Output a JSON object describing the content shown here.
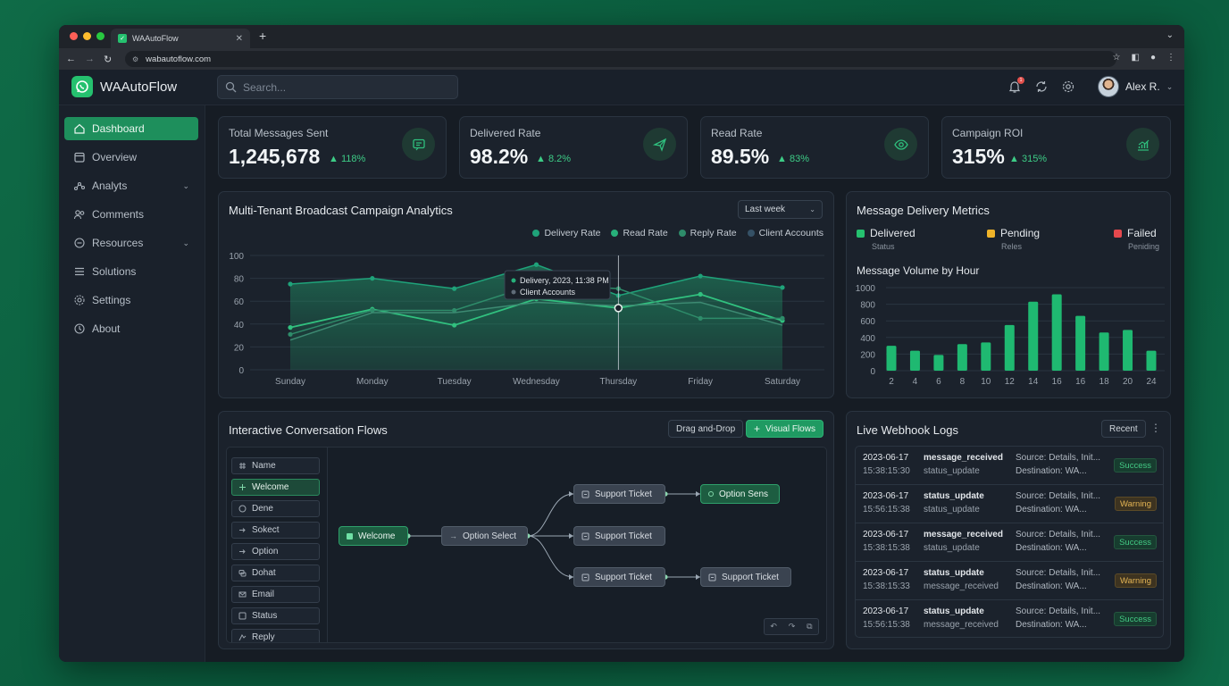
{
  "browser": {
    "tab_title": "WAAutoFlow",
    "url": "wabautoflow.com"
  },
  "app": {
    "name": "WAAutoFlow",
    "search_placeholder": "Search...",
    "notification_count": "1",
    "user_name": "Alex R."
  },
  "sidebar": {
    "items": [
      {
        "label": "Dashboard",
        "icon": "home-icon",
        "active": true,
        "expandable": false
      },
      {
        "label": "Overview",
        "icon": "calendar-icon",
        "active": false,
        "expandable": false
      },
      {
        "label": "Analyts",
        "icon": "analytics-icon",
        "active": false,
        "expandable": true
      },
      {
        "label": "Comments",
        "icon": "users-icon",
        "active": false,
        "expandable": false
      },
      {
        "label": "Resources",
        "icon": "chat-icon",
        "active": false,
        "expandable": true
      },
      {
        "label": "Solutions",
        "icon": "list-icon",
        "active": false,
        "expandable": false
      },
      {
        "label": "Settings",
        "icon": "gear-icon",
        "active": false,
        "expandable": false
      },
      {
        "label": "About",
        "icon": "clock-icon",
        "active": false,
        "expandable": false
      }
    ]
  },
  "stats": [
    {
      "label": "Total Messages Sent",
      "value": "1,245,678",
      "delta": "118%",
      "icon": "message-icon"
    },
    {
      "label": "Delivered Rate",
      "value": "98.2%",
      "delta": "8.2%",
      "icon": "send-icon"
    },
    {
      "label": "Read Rate",
      "value": "89.5%",
      "delta": "83%",
      "icon": "eye-icon"
    },
    {
      "label": "Campaign ROI",
      "value": "315%",
      "delta": "315%",
      "icon": "trend-chart-icon"
    }
  ],
  "campaign": {
    "title": "Multi-Tenant Broadcast Campaign Analytics",
    "range": "Last week",
    "tooltip_line1": "Delivery, 2023, 11:38 PM",
    "tooltip_line2": "Client Accounts",
    "colors": {
      "delivery": "#1fa37a",
      "read": "#27b07a",
      "reply": "#2e8c6a",
      "client": "#355166"
    }
  },
  "delivery_metrics": {
    "title": "Message Delivery Metrics",
    "statuses": [
      {
        "label": "Delivered",
        "sub": "Status",
        "color": "#25c16f"
      },
      {
        "label": "Pending",
        "sub": "Reles",
        "color": "#f0b429"
      },
      {
        "label": "Failed",
        "sub": "Peniding",
        "color": "#e5484d"
      }
    ],
    "subtitle": "Message Volume by Hour"
  },
  "chart_data": [
    {
      "type": "line",
      "categories": [
        "Sunday",
        "Monday",
        "Tuesday",
        "Wednesday",
        "Thursday",
        "Friday",
        "Saturday"
      ],
      "ylim": [
        0,
        100
      ],
      "yticks": [
        0,
        20,
        40,
        60,
        80,
        100
      ],
      "series": [
        {
          "name": "Delivery Rate",
          "values": [
            75,
            80,
            71,
            92,
            65,
            82,
            72
          ]
        },
        {
          "name": "Read Rate",
          "values": [
            37,
            53,
            39,
            62,
            54,
            66,
            43
          ]
        },
        {
          "name": "Reply Rate",
          "values": [
            31,
            52,
            52,
            75,
            71,
            45,
            45
          ]
        },
        {
          "name": "Client Accounts",
          "values": [
            26,
            50,
            50,
            59,
            56,
            59,
            39
          ]
        }
      ]
    },
    {
      "type": "bar",
      "categories": [
        "2",
        "4",
        "6",
        "8",
        "10",
        "12",
        "14",
        "16",
        "16",
        "18",
        "20",
        "24"
      ],
      "values": [
        300,
        240,
        190,
        320,
        340,
        550,
        830,
        920,
        660,
        460,
        490,
        240
      ],
      "ylim": [
        0,
        1000
      ],
      "yticks": [
        0,
        200,
        400,
        600,
        800,
        1000
      ]
    }
  ],
  "flows": {
    "title": "Interactive Conversation Flows",
    "btn_drag": "Drag and-Drop",
    "btn_visual": "Visual Flows",
    "palette": [
      "Name",
      "Welcome",
      "Dene",
      "Sokect",
      "Option",
      "Dohat",
      "Email",
      "Status",
      "Reply"
    ],
    "nodes": {
      "welcome": "Welcome",
      "option_select": "Option Select",
      "support1": "Support Ticket",
      "support2": "Support Ticket",
      "support3": "Support Ticket",
      "option_sens": "Option Sens",
      "support4": "Support Ticket"
    }
  },
  "logs": {
    "title": "Live Webhook Logs",
    "filter": "Recent",
    "rows": [
      {
        "date": "2023-06-17",
        "time": "15:38:15:30",
        "event": "message_received",
        "event2": "status_update",
        "source": "Source: Details, Init...",
        "dest": "Destination: WA...",
        "status": "Success",
        "type": "success"
      },
      {
        "date": "2023-06-17",
        "time": "15:56:15:38",
        "event": "status_update",
        "event2": "status_update",
        "source": "Source: Details, Init...",
        "dest": "Destination: WA...",
        "status": "Warning",
        "type": "warning"
      },
      {
        "date": "2023-06-17",
        "time": "15:38:15:38",
        "event": "message_received",
        "event2": "status_update",
        "source": "Source: Details, Init...",
        "dest": "Destination: WA...",
        "status": "Success",
        "type": "success"
      },
      {
        "date": "2023-06-17",
        "time": "15:38:15:33",
        "event": "status_update",
        "event2": "message_received",
        "source": "Source: Details, Init...",
        "dest": "Destination: WA...",
        "status": "Warning",
        "type": "warning"
      },
      {
        "date": "2023-06-17",
        "time": "15:56:15:38",
        "event": "status_update",
        "event2": "message_received",
        "source": "Source: Details, Init...",
        "dest": "Destination: WA...",
        "status": "Success",
        "type": "success"
      }
    ]
  }
}
